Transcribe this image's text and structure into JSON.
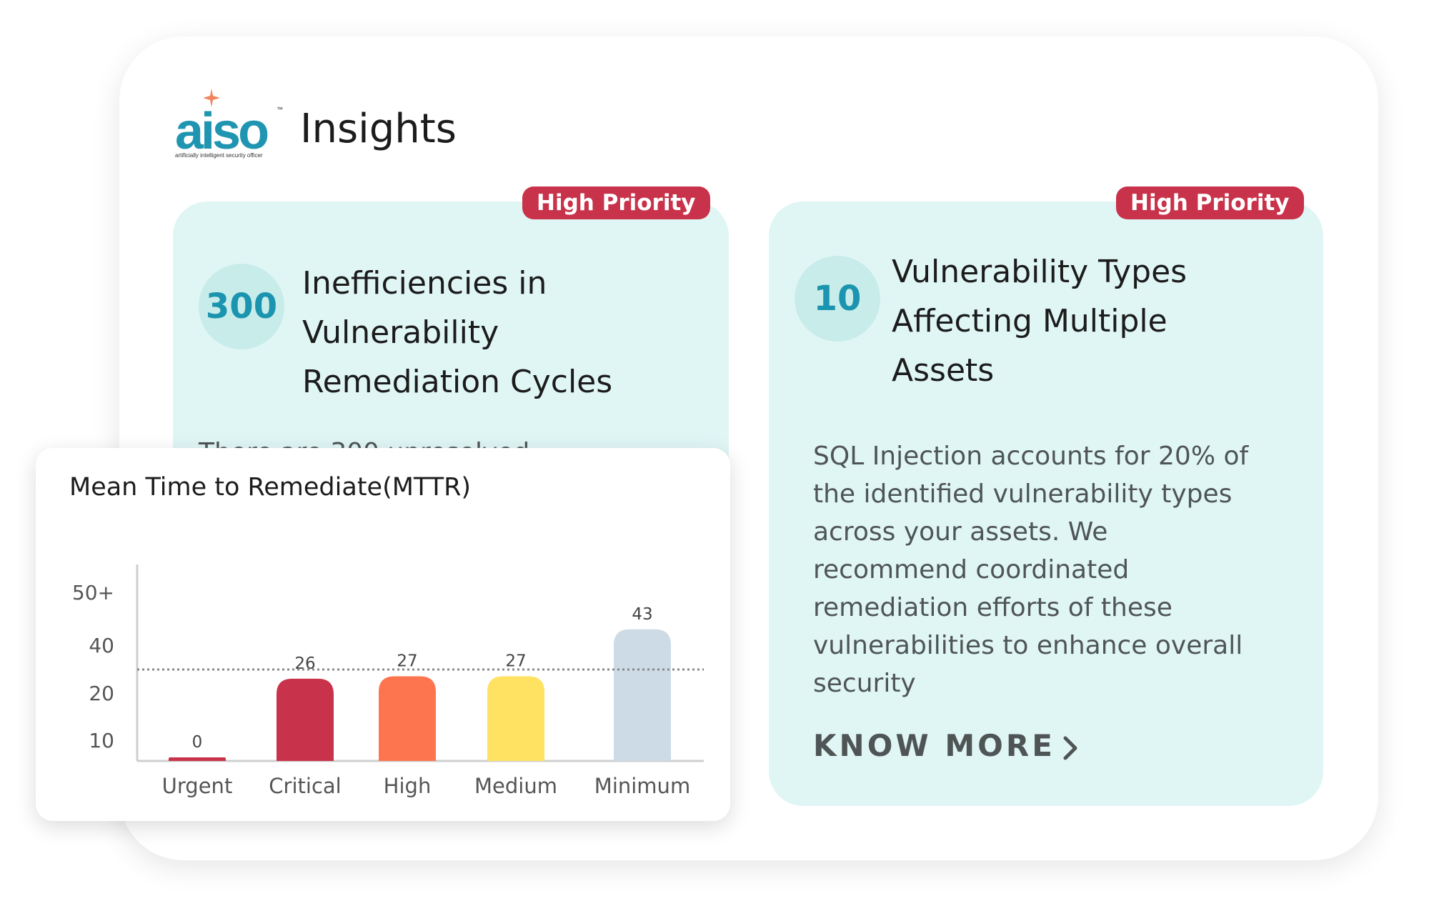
{
  "brand": {
    "logo_text": "aiso",
    "logo_tagline": "artificially intelligent security officer",
    "logo_tm": "™",
    "page_title": "Insights"
  },
  "cards": [
    {
      "priority": "High Priority",
      "count": "300",
      "title_lines": [
        "Inefficiencies in",
        "Vulnerability",
        "Remediation Cycles"
      ],
      "body_partial": "There are 300 unresolved"
    },
    {
      "priority": "High Priority",
      "count": "10",
      "title_lines": [
        "Vulnerability Types",
        "Affecting Multiple",
        "Assets"
      ],
      "body_lines": [
        "SQL Injection accounts for 20% of",
        "the identified vulnerability types",
        "across your assets. We",
        "recommend coordinated",
        "remediation efforts of these",
        "vulnerabilities to enhance overall",
        "security"
      ],
      "cta": "KNOW MORE",
      "cta_icon": "chevron-right-icon"
    }
  ],
  "chart_data": {
    "type": "bar",
    "title": "Mean Time to Remediate(MTTR)",
    "xlabel": "",
    "ylabel": "",
    "categories": [
      "Urgent",
      "Critical",
      "High",
      "Medium",
      "Minimum"
    ],
    "values": [
      0,
      26,
      27,
      27,
      43
    ],
    "value_labels": [
      "0",
      "26",
      "27",
      "27",
      "43"
    ],
    "y_tick_labels": [
      "10",
      "20",
      "40",
      "50+"
    ],
    "reference_line": {
      "style": "dotted"
    },
    "bar_colors": [
      "#c8324a",
      "#c8324a",
      "#fd754f",
      "#ffe261",
      "#cddbe6"
    ],
    "grid": false,
    "legend": "none"
  },
  "colors": {
    "accent_teal": "#1b94af",
    "badge_red": "#c8324a",
    "card_bg": "#e0f6f5"
  }
}
